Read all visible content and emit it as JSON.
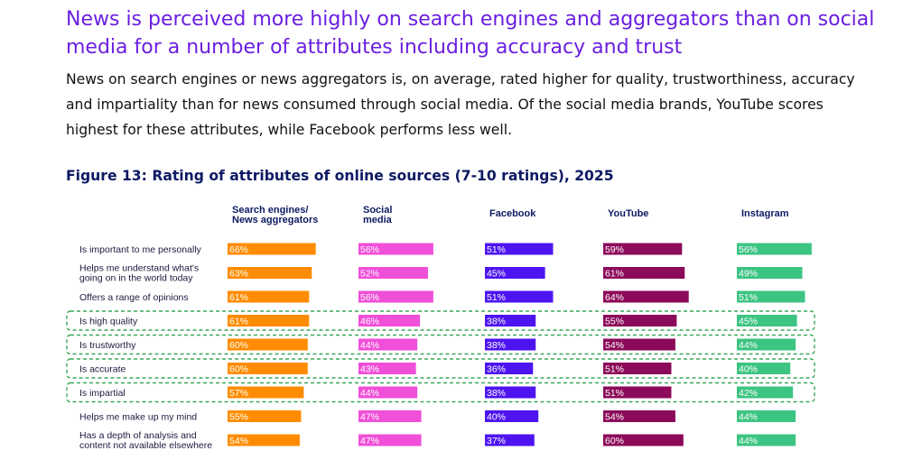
{
  "headline": "News is perceived more highly on search engines and aggregators than on social media for a number of attributes including accuracy and trust",
  "intro": "News on search engines or news aggregators is, on average, rated higher for quality, trustworthiness, accuracy and impartiality than for news consumed through social media. Of the social media brands, YouTube scores highest for these attributes, while Facebook performs less well.",
  "colors": {
    "headline": "#6a1fe0",
    "figure_title": "#0d1a63",
    "highlight_border": "#3aa85a"
  },
  "chart_data": {
    "type": "bar",
    "title": "Figure 13: Rating of attributes of online sources (7-10 ratings), 2025",
    "value_unit": "%",
    "categories": [
      [
        "Is important to me personally"
      ],
      [
        "Helps me understand what's",
        "going on in the world today"
      ],
      [
        "Offers a range of opinions"
      ],
      [
        "Is high quality"
      ],
      [
        "Is trustworthy"
      ],
      [
        "Is accurate"
      ],
      [
        "Is impartial"
      ],
      [
        "Helps me make up my mind"
      ],
      [
        "Has a depth of analysis and",
        "content not available elsewhere"
      ]
    ],
    "highlighted_rows": [
      3,
      4,
      5,
      6
    ],
    "series": [
      {
        "name": [
          "Search engines/",
          "News aggregators"
        ],
        "color": "#ff8c00",
        "values": [
          66,
          63,
          61,
          61,
          60,
          60,
          57,
          55,
          54
        ]
      },
      {
        "name": [
          "Social",
          "media"
        ],
        "color": "#f04fd8",
        "values": [
          56,
          52,
          56,
          46,
          44,
          43,
          44,
          47,
          47
        ]
      },
      {
        "name": [
          "Facebook"
        ],
        "color": "#4d14f0",
        "values": [
          51,
          45,
          51,
          38,
          38,
          36,
          38,
          40,
          37
        ]
      },
      {
        "name": [
          "YouTube"
        ],
        "color": "#8c0a5a",
        "values": [
          59,
          61,
          64,
          55,
          54,
          51,
          51,
          54,
          60
        ]
      },
      {
        "name": [
          "Instagram"
        ],
        "color": "#3cc483",
        "values": [
          56,
          49,
          51,
          45,
          44,
          40,
          42,
          44,
          44
        ]
      }
    ]
  }
}
